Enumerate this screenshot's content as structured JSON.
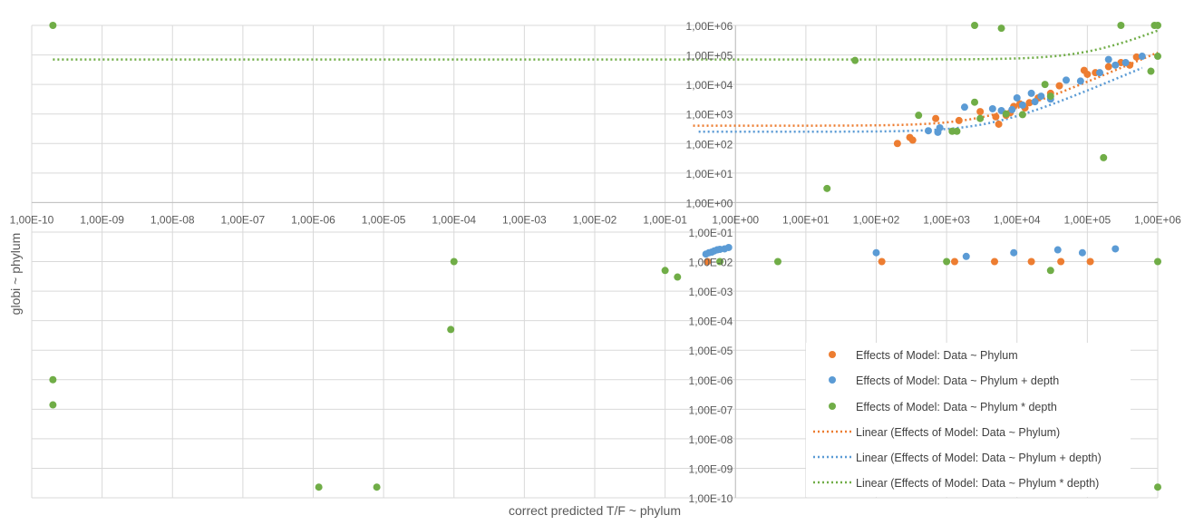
{
  "chart_data": {
    "type": "scatter",
    "xscale": "log",
    "yscale": "log",
    "xlim": [
      1e-10,
      1000000.0
    ],
    "ylim": [
      1e-10,
      1000000.0
    ],
    "xlabel": "correct predicted T/F ~ phylum",
    "ylabel": "globi ~ phylum",
    "x_ticks": [
      "1,00E-10",
      "1,00E-09",
      "1,00E-08",
      "1,00E-07",
      "1,00E-06",
      "1,00E-05",
      "1,00E-04",
      "1,00E-03",
      "1,00E-02",
      "1,00E-01",
      "1,00E+00",
      "1,00E+01",
      "1,00E+02",
      "1,00E+03",
      "1,00E+04",
      "1,00E+05",
      "1,00E+06"
    ],
    "y_ticks": [
      "1,00E+06",
      "1,00E+05",
      "1,00E+04",
      "1,00E+03",
      "1,00E+02",
      "1,00E+01",
      "1,00E+00",
      "1,00E-01",
      "1,00E-02",
      "1,00E-03",
      "1,00E-04",
      "1,00E-05",
      "1,00E-06",
      "1,00E-07",
      "1,00E-08",
      "1,00E-09",
      "1,00E-10"
    ],
    "legend_position": "bottom-right",
    "series": [
      {
        "name": "Effects of Model: Data ~ Phylum",
        "color": "#ED7D31",
        "points": [
          [
            200,
            100
          ],
          [
            300,
            160
          ],
          [
            330,
            130
          ],
          [
            700,
            700
          ],
          [
            1500,
            600
          ],
          [
            3000,
            1200
          ],
          [
            5500,
            450
          ],
          [
            5000,
            800
          ],
          [
            7000,
            900
          ],
          [
            8000,
            1100
          ],
          [
            9000,
            1800
          ],
          [
            11000,
            2200
          ],
          [
            13000,
            1600
          ],
          [
            15000,
            2400
          ],
          [
            20000,
            3500
          ],
          [
            30000,
            5000
          ],
          [
            40000,
            9000
          ],
          [
            90000,
            30000
          ],
          [
            100000,
            22000
          ],
          [
            130000,
            25000
          ],
          [
            200000,
            40000
          ],
          [
            300000,
            55000
          ],
          [
            400000,
            45000
          ],
          [
            500000,
            85000
          ],
          [
            0.4,
            0.01
          ],
          [
            120,
            0.01
          ],
          [
            1300,
            0.01
          ],
          [
            4800,
            0.01
          ],
          [
            16000,
            0.01
          ],
          [
            42000,
            0.01
          ],
          [
            110000,
            0.01
          ]
        ]
      },
      {
        "name": "Effects of Model: Data ~ Phylum + depth",
        "color": "#5B9BD5",
        "points": [
          [
            550,
            270
          ],
          [
            750,
            240
          ],
          [
            800,
            340
          ],
          [
            1800,
            1700
          ],
          [
            4500,
            1500
          ],
          [
            6000,
            1300
          ],
          [
            8500,
            1400
          ],
          [
            10000,
            3500
          ],
          [
            12000,
            2000
          ],
          [
            16000,
            5000
          ],
          [
            18000,
            2600
          ],
          [
            22000,
            4000
          ],
          [
            30000,
            3200
          ],
          [
            50000,
            14000
          ],
          [
            80000,
            13000
          ],
          [
            150000,
            25000
          ],
          [
            200000,
            70000
          ],
          [
            250000,
            45000
          ],
          [
            350000,
            55000
          ],
          [
            600000,
            90000
          ],
          [
            0.38,
            0.018
          ],
          [
            0.42,
            0.02
          ],
          [
            0.46,
            0.021
          ],
          [
            0.5,
            0.023
          ],
          [
            0.55,
            0.025
          ],
          [
            0.6,
            0.026
          ],
          [
            0.7,
            0.027
          ],
          [
            0.8,
            0.03
          ],
          [
            100,
            0.02
          ],
          [
            1900,
            0.015
          ],
          [
            9000,
            0.02
          ],
          [
            38000,
            0.025
          ],
          [
            85000,
            0.02
          ],
          [
            250000,
            0.027
          ]
        ]
      },
      {
        "name": "Effects of Model: Data ~ Phylum * depth",
        "color": "#70AD47",
        "points": [
          [
            2e-10,
            1000000.0
          ],
          [
            50,
            65000
          ],
          [
            2500,
            1000000.0
          ],
          [
            6000,
            800000
          ],
          [
            300000,
            1000000.0
          ],
          [
            900000,
            1000000.0
          ],
          [
            1000000,
            1000000.0
          ],
          [
            1000000,
            90000
          ],
          [
            800000,
            28000
          ],
          [
            170000,
            33
          ],
          [
            20,
            3
          ],
          [
            400,
            900
          ],
          [
            1200,
            260
          ],
          [
            1400,
            260
          ],
          [
            2500,
            2500
          ],
          [
            3000,
            700
          ],
          [
            7000,
            1000
          ],
          [
            12000,
            950
          ],
          [
            25000,
            10000
          ],
          [
            30000,
            4000
          ],
          [
            0.0001,
            0.01
          ],
          [
            9e-05,
            5e-05
          ],
          [
            0.1,
            0.005
          ],
          [
            0.15,
            0.003
          ],
          [
            0.6,
            0.01
          ],
          [
            4,
            0.01
          ],
          [
            1000,
            0.01
          ],
          [
            30000,
            0.005
          ],
          [
            1000000,
            0.01
          ],
          [
            2e-10,
            1e-06
          ],
          [
            2e-10,
            1.4e-07
          ],
          [
            1.2e-06,
            2.3e-10
          ],
          [
            8e-06,
            2.3e-10
          ],
          [
            1000000,
            2.3e-10
          ]
        ]
      }
    ],
    "trendlines": [
      {
        "name": "Linear (Effects of Model: Data ~ Phylum)",
        "color": "#ED7D31",
        "intercept": 400,
        "slope": 0.12,
        "x_range": [
          0.25,
          1000000
        ]
      },
      {
        "name": "Linear (Effects of Model: Data ~ Phylum + depth)",
        "color": "#5B9BD5",
        "intercept": 250,
        "slope": 0.06,
        "x_range": [
          0.3,
          600000
        ]
      },
      {
        "name": "Linear (Effects of Model: Data ~ Phylum * depth)",
        "color": "#70AD47",
        "intercept": 70000,
        "slope": 0.6,
        "x_range": [
          2e-10,
          1000000
        ]
      }
    ]
  }
}
